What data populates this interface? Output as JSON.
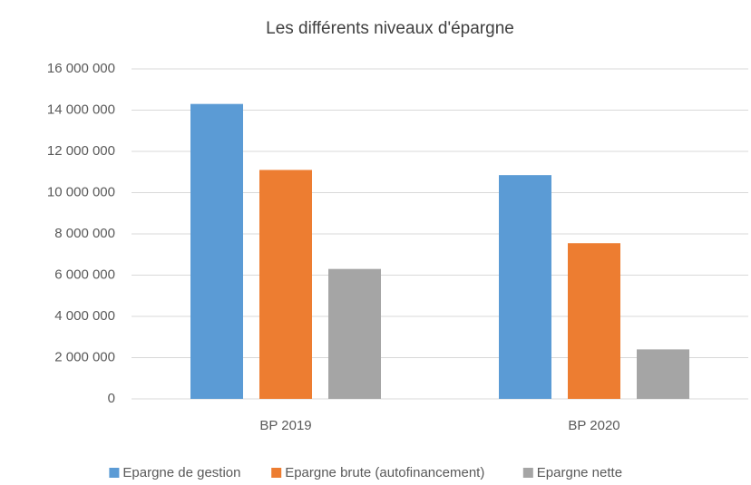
{
  "chart_data": {
    "type": "bar",
    "title": "Les différents niveaux d'épargne",
    "categories": [
      "BP 2019",
      "BP 2020"
    ],
    "series": [
      {
        "name": "Epargne de gestion",
        "color": "#5b9bd5",
        "values": [
          14300000,
          10850000
        ]
      },
      {
        "name": "Epargne brute (autofinancement)",
        "color": "#ed7d31",
        "values": [
          11100000,
          7550000
        ]
      },
      {
        "name": "Epargne nette",
        "color": "#a5a5a5",
        "values": [
          6300000,
          2400000
        ]
      }
    ],
    "ylim": [
      0,
      16000000
    ],
    "yticks": [
      0,
      {
        "value": 2000000,
        "label": "2 000 000"
      },
      {
        "value": 4000000,
        "label": "4 000 000"
      },
      {
        "value": 6000000,
        "label": "6 000 000"
      },
      {
        "value": 8000000,
        "label": "8 000 000"
      },
      {
        "value": 10000000,
        "label": "10 000 000"
      },
      {
        "value": 12000000,
        "label": "12 000 000"
      },
      {
        "value": 14000000,
        "label": "14 000 000"
      },
      {
        "value": 16000000,
        "label": "16 000 000"
      }
    ],
    "grid": true,
    "legend": "bottom"
  }
}
